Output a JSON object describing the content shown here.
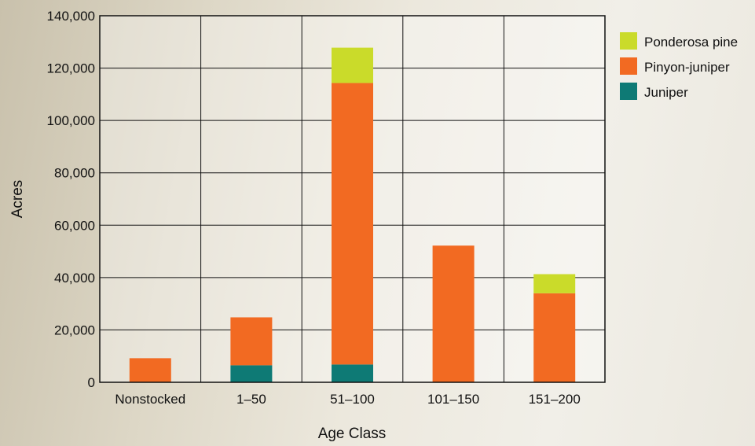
{
  "chart_data": {
    "type": "bar",
    "stacked": true,
    "title": "",
    "xlabel": "Age Class",
    "ylabel": "Acres",
    "categories": [
      "Nonstocked",
      "1–50",
      "51–100",
      "101–150",
      "151–200"
    ],
    "series": [
      {
        "name": "Juniper",
        "color": "#0e7a75",
        "values": [
          0,
          6500,
          6800,
          0,
          0
        ]
      },
      {
        "name": "Pinyon-juniper",
        "color": "#f26a22",
        "values": [
          9200,
          18300,
          107500,
          52200,
          34000
        ]
      },
      {
        "name": "Ponderosa pine",
        "color": "#cadb2a",
        "values": [
          0,
          0,
          13500,
          0,
          7300
        ]
      }
    ],
    "ylim": [
      0,
      140000
    ],
    "yticks": [
      0,
      20000,
      40000,
      60000,
      80000,
      100000,
      120000,
      140000
    ],
    "ytick_labels": [
      "0",
      "20,000",
      "40,000",
      "60,000",
      "80,000",
      "100,000",
      "120,000",
      "140,000"
    ],
    "grid": true,
    "legend_position": "right",
    "legend_order": [
      "Ponderosa pine",
      "Pinyon-juniper",
      "Juniper"
    ]
  }
}
